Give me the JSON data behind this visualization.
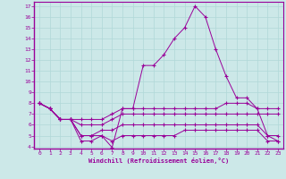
{
  "xlabel": "Windchill (Refroidissement éolien,°C)",
  "background_color": "#cce8e8",
  "line_color": "#990099",
  "grid_color": "#b0d8d8",
  "xlim": [
    -0.5,
    23.5
  ],
  "ylim": [
    3.8,
    17.4
  ],
  "xticks": [
    0,
    1,
    2,
    3,
    4,
    5,
    6,
    7,
    8,
    9,
    10,
    11,
    12,
    13,
    14,
    15,
    16,
    17,
    18,
    19,
    20,
    21,
    22,
    23
  ],
  "yticks": [
    4,
    5,
    6,
    7,
    8,
    9,
    10,
    11,
    12,
    13,
    14,
    15,
    16,
    17
  ],
  "lines": [
    [
      8.0,
      7.5,
      6.5,
      6.5,
      4.5,
      4.5,
      5.0,
      3.9,
      7.5,
      7.5,
      11.5,
      11.5,
      12.5,
      14.0,
      15.0,
      17.0,
      16.0,
      13.0,
      10.5,
      8.5,
      8.5,
      7.5,
      5.0,
      5.0
    ],
    [
      8.0,
      7.5,
      6.5,
      6.5,
      6.5,
      6.5,
      6.5,
      7.0,
      7.5,
      7.5,
      7.5,
      7.5,
      7.5,
      7.5,
      7.5,
      7.5,
      7.5,
      7.5,
      8.0,
      8.0,
      8.0,
      7.5,
      7.5,
      7.5
    ],
    [
      8.0,
      7.5,
      6.5,
      6.5,
      6.0,
      6.0,
      6.0,
      6.5,
      7.0,
      7.0,
      7.0,
      7.0,
      7.0,
      7.0,
      7.0,
      7.0,
      7.0,
      7.0,
      7.0,
      7.0,
      7.0,
      7.0,
      7.0,
      7.0
    ],
    [
      8.0,
      7.5,
      6.5,
      6.5,
      5.0,
      5.0,
      5.5,
      5.5,
      6.0,
      6.0,
      6.0,
      6.0,
      6.0,
      6.0,
      6.0,
      6.0,
      6.0,
      6.0,
      6.0,
      6.0,
      6.0,
      6.0,
      5.0,
      4.5
    ],
    [
      8.0,
      7.5,
      6.5,
      6.5,
      5.0,
      5.0,
      5.0,
      4.5,
      5.0,
      5.0,
      5.0,
      5.0,
      5.0,
      5.0,
      5.5,
      5.5,
      5.5,
      5.5,
      5.5,
      5.5,
      5.5,
      5.5,
      4.5,
      4.5
    ]
  ]
}
